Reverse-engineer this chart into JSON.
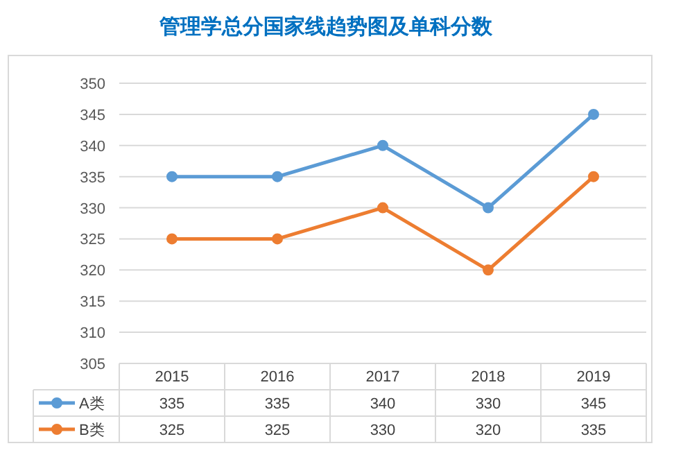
{
  "chart_data": {
    "type": "line",
    "title": "管理学总分国家线趋势图及单科分数",
    "categories": [
      "2015",
      "2016",
      "2017",
      "2018",
      "2019"
    ],
    "series": [
      {
        "name": "A类",
        "color": "#5b9bd5",
        "values": [
          335,
          335,
          340,
          330,
          345
        ]
      },
      {
        "name": "B类",
        "color": "#ed7d31",
        "values": [
          325,
          325,
          330,
          320,
          335
        ]
      }
    ],
    "ylim": [
      305,
      350
    ],
    "yticks": [
      305,
      310,
      315,
      320,
      325,
      330,
      335,
      340,
      345,
      350
    ],
    "grid": "y",
    "legend": "bottom",
    "data_labels": true,
    "marker": "circle"
  }
}
